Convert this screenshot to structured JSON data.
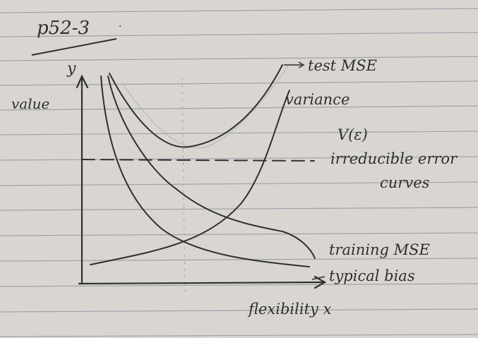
{
  "page": {
    "title": "p52-3",
    "paper_color": "#d9d6d2",
    "rule_color": "#9fa3ab",
    "ink_color": "#2f2f2f"
  },
  "axes": {
    "y_axis_label": "y",
    "y_axis_side_label": "value",
    "x_axis_label": "flexibility x"
  },
  "curves": {
    "test_mse": "test MSE",
    "variance": "variance",
    "v_epsilon": "V(ε)",
    "irreducible_error": "irreducible error",
    "curves_word": "curves",
    "training_mse": "training MSE",
    "typical_bias": "typical bias"
  }
}
